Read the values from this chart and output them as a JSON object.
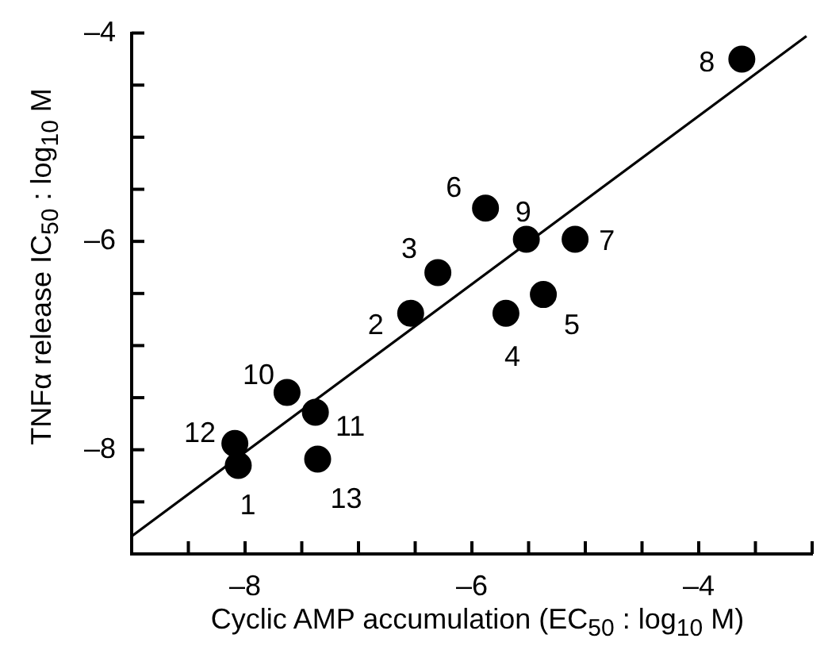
{
  "chart_data": {
    "type": "scatter",
    "xlabel": "Cyclic AMP accumulation (EC$_{50}$ : log$_{10}$ M)",
    "ylabel": "TNFα release IC$_{50}$ : log$_{10}$ M",
    "series": [
      {
        "color": "#000000",
        "marker": "circle",
        "x": [
          -8.06,
          -6.54,
          -6.3,
          -5.7,
          -5.37,
          -5.88,
          -5.09,
          -3.62,
          -5.52,
          -7.63,
          -7.38,
          -8.09,
          -7.36
        ],
        "values": [
          -8.15,
          -6.69,
          -6.3,
          -6.69,
          -6.51,
          -5.68,
          -5.98,
          -4.25,
          -5.98,
          -7.45,
          -7.64,
          -7.94,
          -8.09
        ]
      },
      {
        "type": "line",
        "color": "#000000",
        "x": [
          -9,
          -3.05
        ],
        "values": [
          -8.83,
          -4.03
        ]
      }
    ],
    "annotations": [
      {
        "text": "1",
        "x": -8.06,
        "y": -8.15
      },
      {
        "text": "2",
        "x": -6.54,
        "y": -6.69
      },
      {
        "text": "3",
        "x": -6.3,
        "y": -6.3
      },
      {
        "text": "4",
        "x": -5.7,
        "y": -6.69
      },
      {
        "text": "5",
        "x": -5.37,
        "y": -6.51
      },
      {
        "text": "6",
        "x": -5.88,
        "y": -5.68
      },
      {
        "text": "7",
        "x": -5.09,
        "y": -5.98
      },
      {
        "text": "8",
        "x": -3.62,
        "y": -4.25
      },
      {
        "text": "9",
        "x": -5.52,
        "y": -5.98
      },
      {
        "text": "10",
        "x": -7.63,
        "y": -7.45
      },
      {
        "text": "11",
        "x": -7.38,
        "y": -7.64
      },
      {
        "text": "12",
        "x": -8.09,
        "y": -7.94
      },
      {
        "text": "13",
        "x": -7.36,
        "y": -8.09
      }
    ],
    "xlim": [
      -9,
      -3
    ],
    "xticks": [
      {
        "value": -8.5,
        "label": null
      },
      {
        "value": -8,
        "label": "–8"
      },
      {
        "value": -7.5,
        "label": null
      },
      {
        "value": -7,
        "label": null
      },
      {
        "value": -6.5,
        "label": null
      },
      {
        "value": -6,
        "label": "–6"
      },
      {
        "value": -5.5,
        "label": null
      },
      {
        "value": -5,
        "label": null
      },
      {
        "value": -4.5,
        "label": null
      },
      {
        "value": -4,
        "label": "–4"
      },
      {
        "value": -3.5,
        "label": null
      },
      {
        "value": -3,
        "label": null
      }
    ],
    "ylim": [
      -9,
      -4
    ],
    "yticks": [
      {
        "value": -8.5,
        "label": null
      },
      {
        "value": -8,
        "label": "–8"
      },
      {
        "value": -7.5,
        "label": null
      },
      {
        "value": -7,
        "label": null
      },
      {
        "value": -6.5,
        "label": null
      },
      {
        "value": -6,
        "label": "–6"
      },
      {
        "value": -5.5,
        "label": null
      },
      {
        "value": -5,
        "label": null
      },
      {
        "value": -4.5,
        "label": null
      },
      {
        "value": -4,
        "label": "–4"
      }
    ],
    "legend": false
  }
}
